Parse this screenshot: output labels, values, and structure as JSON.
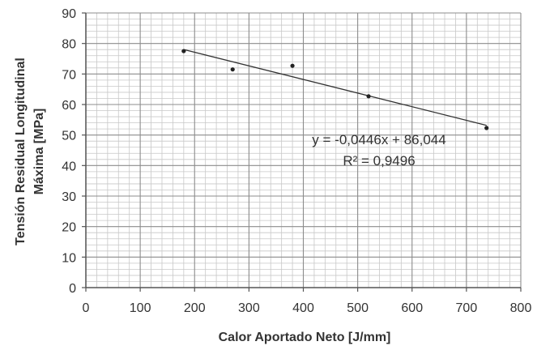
{
  "chart_data": {
    "type": "scatter",
    "title": "",
    "xlabel": "Calor Aportado Neto [J/mm]",
    "ylabel_lines": [
      "Tensión Residual Longitudinal",
      "Máxima [MPa]"
    ],
    "xlim": [
      0,
      800
    ],
    "ylim": [
      0,
      90
    ],
    "x_ticks": [
      "0",
      "100",
      "200",
      "300",
      "400",
      "500",
      "600",
      "700",
      "800"
    ],
    "y_ticks": [
      "0",
      "10",
      "20",
      "30",
      "40",
      "50",
      "60",
      "70",
      "80",
      "90"
    ],
    "grid": "major and minor",
    "legend": "none",
    "series": [
      {
        "points": [
          {
            "x": 180,
            "y": 77.5
          },
          {
            "x": 270,
            "y": 71.5
          },
          {
            "x": 380,
            "y": 72.7
          },
          {
            "x": 520,
            "y": 62.7
          },
          {
            "x": 737,
            "y": 52.3
          }
        ]
      }
    ],
    "trendline": {
      "type": "linear",
      "slope": -0.0446,
      "intercept": 86.044,
      "x_range": [
        180,
        737
      ],
      "equation": "y = -0,0446x + 86,044",
      "r_squared": "R² = 0,9496"
    },
    "colors": {
      "marker": "#222222",
      "trendline": "#333333",
      "major_grid": "#8c8c8c",
      "minor_grid": "#c8c8c8",
      "axis": "#555555"
    }
  }
}
